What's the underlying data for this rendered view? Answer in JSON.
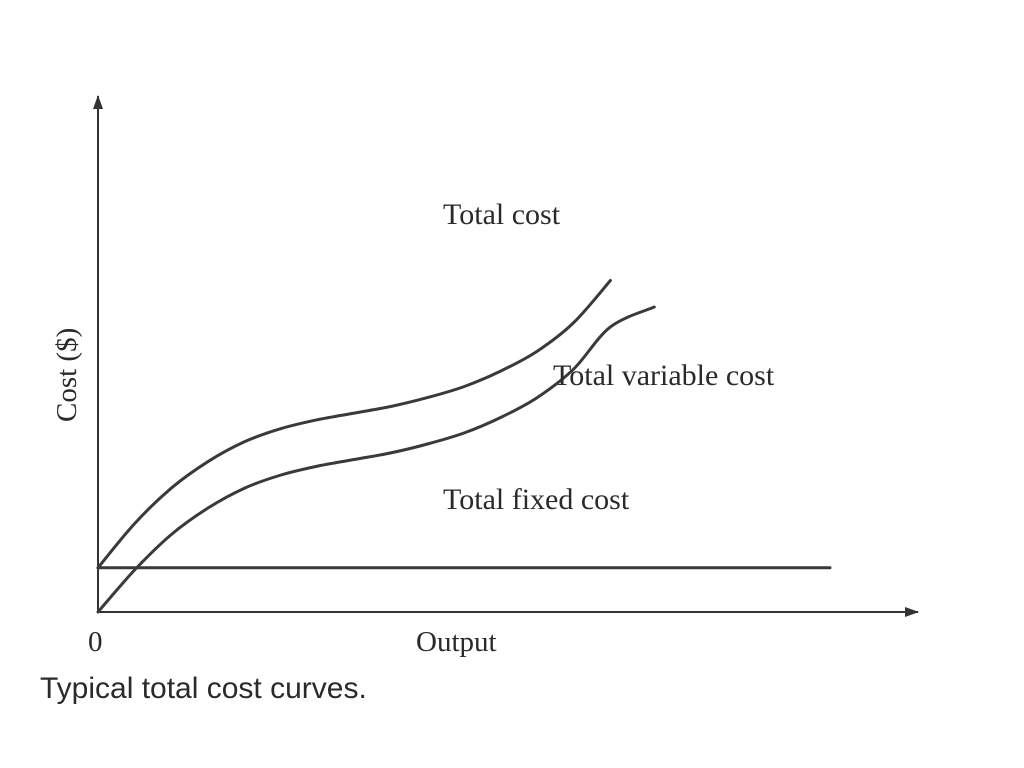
{
  "caption": "Typical total cost curves.",
  "chart_data": {
    "type": "line",
    "title": "",
    "xlabel": "Output",
    "ylabel": "Cost ($)",
    "x_tick_labels": [
      "0"
    ],
    "xlim": [
      0,
      10
    ],
    "ylim": [
      0,
      10
    ],
    "grid": false,
    "legend": "none",
    "series": [
      {
        "name": "Total cost",
        "x": [
          0,
          0.5,
          1,
          1.5,
          2,
          2.5,
          3,
          3.5,
          4,
          4.5,
          5,
          5.5,
          6,
          6.5,
          7
        ],
        "y": [
          1.0,
          2.0,
          2.8,
          3.4,
          3.85,
          4.15,
          4.35,
          4.5,
          4.65,
          4.85,
          5.1,
          5.45,
          5.9,
          6.55,
          7.5
        ]
      },
      {
        "name": "Total variable cost",
        "x": [
          0,
          0.5,
          1,
          1.5,
          2,
          2.5,
          3,
          3.5,
          4,
          4.5,
          5,
          5.5,
          6,
          6.5,
          7,
          7.6
        ],
        "y": [
          0.0,
          0.95,
          1.75,
          2.35,
          2.8,
          3.1,
          3.3,
          3.45,
          3.6,
          3.8,
          4.05,
          4.4,
          4.85,
          5.5,
          6.45,
          6.9
        ]
      },
      {
        "name": "Total fixed cost",
        "x": [
          0,
          10
        ],
        "y": [
          1.0,
          1.0
        ]
      }
    ]
  }
}
